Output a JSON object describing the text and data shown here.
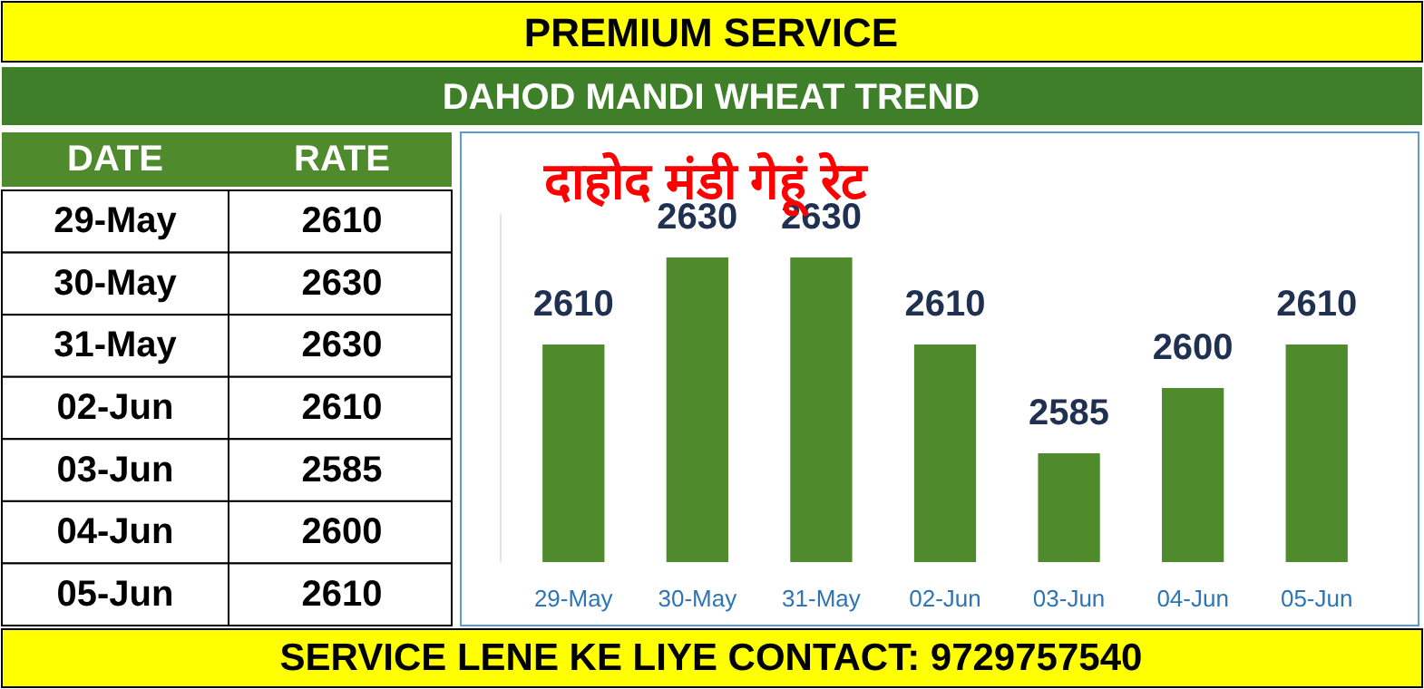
{
  "chart_data": [
    {
      "type": "bar",
      "title": "PREMIUM SERVICE",
      "subtitle": "DAHOD MANDI WHEAT TREND",
      "annotations": [
        "दाहोद मंडी गेहूं रेट",
        "SERVICE LENE KE LIYE CONTACT: 9729757540"
      ],
      "categories": [
        "29-May",
        "30-May",
        "31-May",
        "02-Jun",
        "03-Jun",
        "04-Jun",
        "05-Jun"
      ],
      "values": [
        2610,
        2630,
        2630,
        2610,
        2585,
        2600,
        2610
      ],
      "color": "#4f8a2c",
      "ylim": [
        2560,
        2640
      ],
      "tick_labels": "x",
      "data_labels": true
    },
    {
      "type": "other",
      "annotations": [
        "DATE",
        "RATE"
      ],
      "categories": [
        "29-May",
        "30-May",
        "31-May",
        "02-Jun",
        "03-Jun",
        "04-Jun",
        "05-Jun"
      ],
      "values": [
        2610,
        2630,
        2630,
        2610,
        2585,
        2600,
        2610
      ],
      "data_labels": true
    }
  ]
}
